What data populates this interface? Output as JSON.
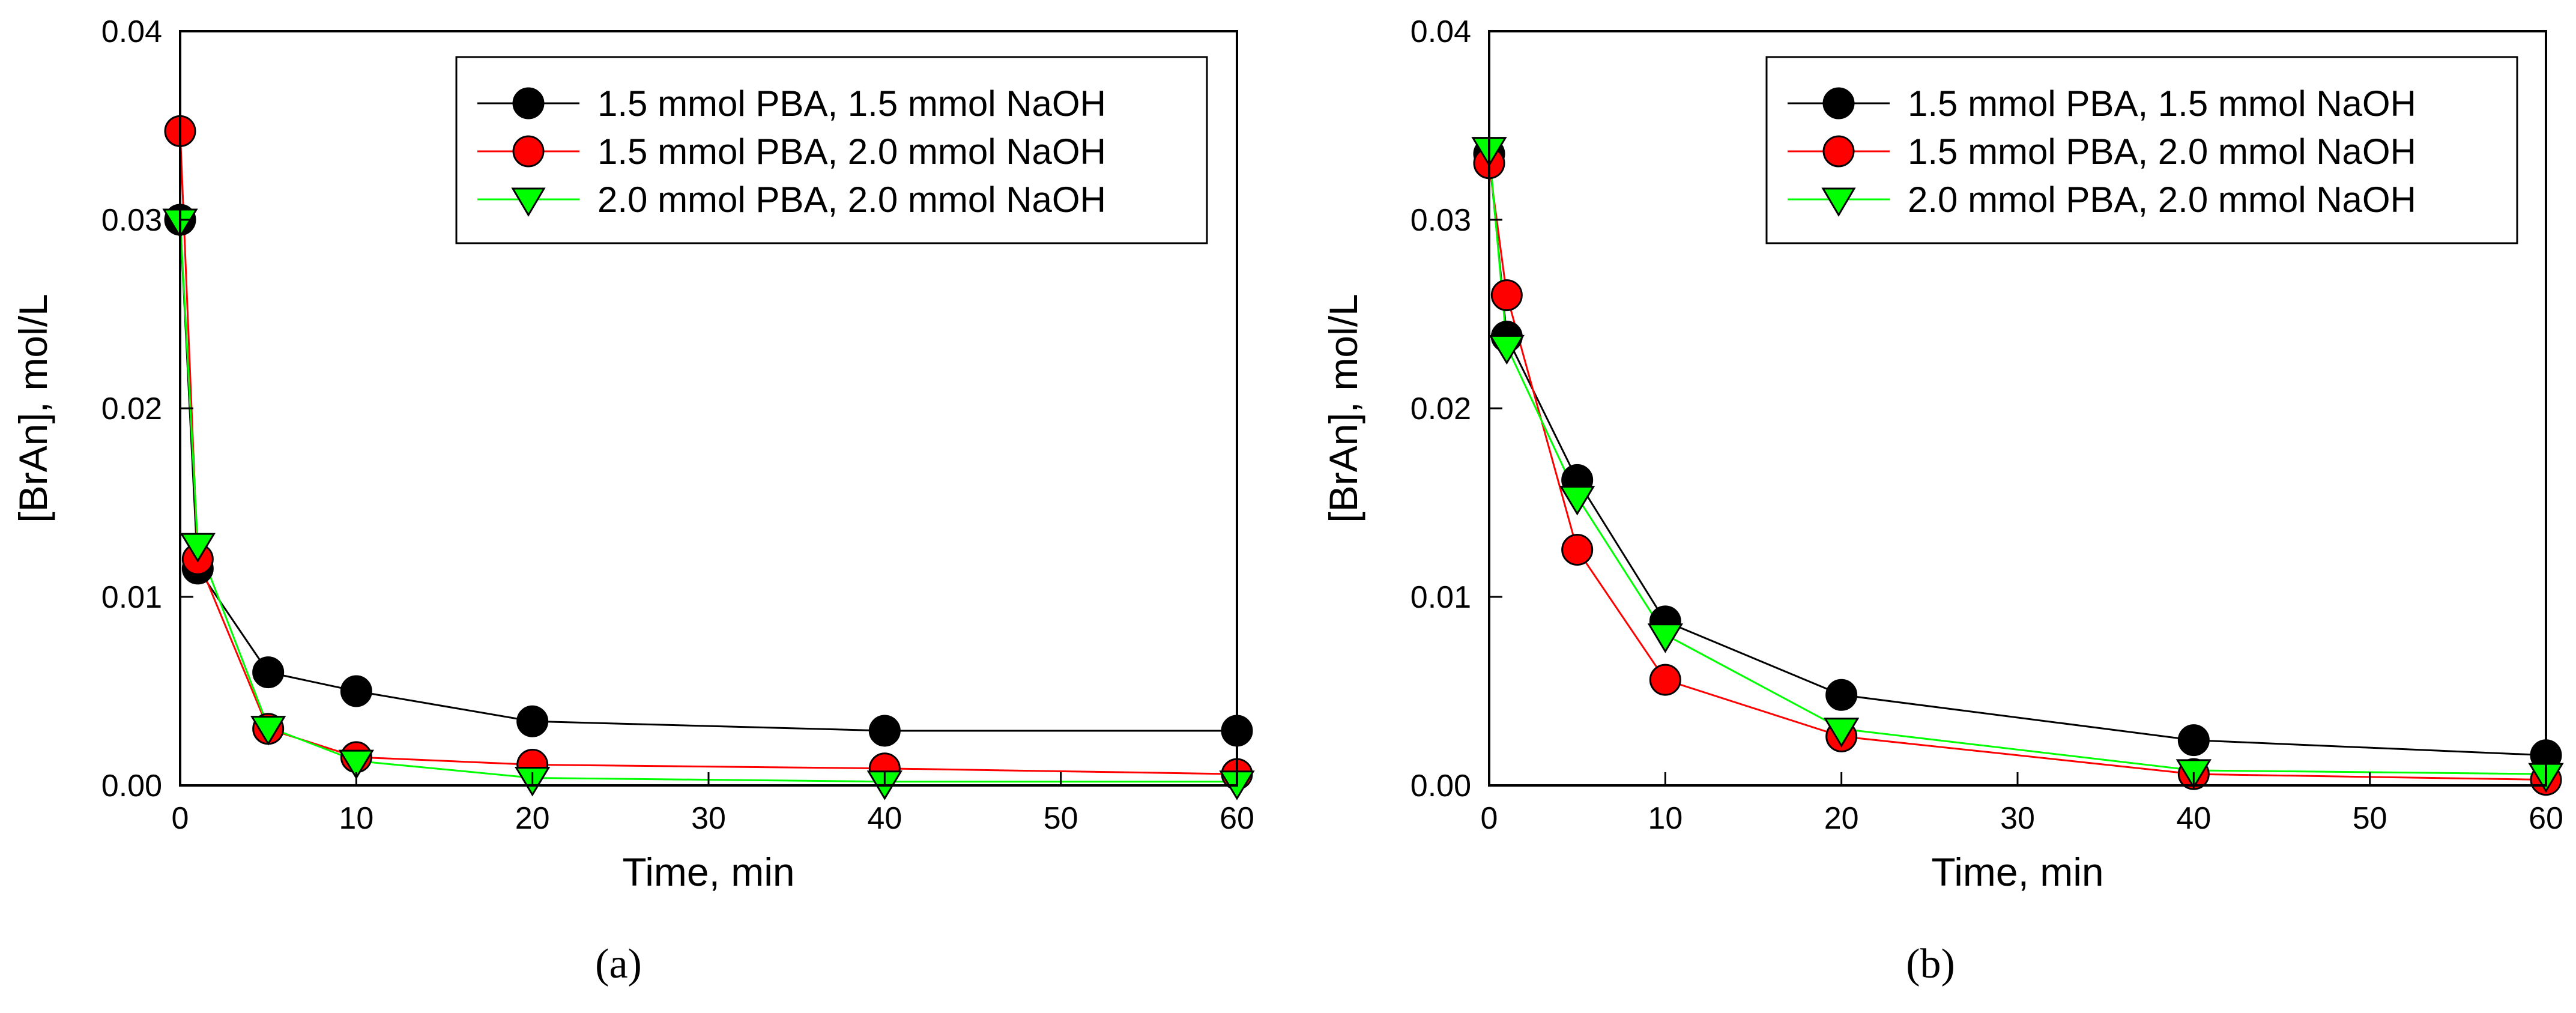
{
  "chart_data": [
    {
      "type": "line",
      "panel_label": "(a)",
      "xlabel": "Time, min",
      "ylabel": "[BrAn], mol/L",
      "xlim": [
        0,
        60
      ],
      "ylim": [
        0,
        0.04
      ],
      "xticks": [
        0,
        10,
        20,
        30,
        40,
        50,
        60
      ],
      "xtick_labels": [
        "0",
        "10",
        "20",
        "30",
        "40",
        "50",
        "60"
      ],
      "yticks": [
        0,
        0.01,
        0.02,
        0.03,
        0.04
      ],
      "ytick_labels": [
        "0.00",
        "0.01",
        "0.02",
        "0.03",
        "0.04"
      ],
      "legend_position": "top-right",
      "grid": false,
      "series": [
        {
          "name": "1.5 mmol PBA, 1.5 mmol NaOH",
          "color": "#000000",
          "marker": "circle",
          "x": [
            0,
            1,
            5,
            10,
            20,
            40,
            60
          ],
          "y": [
            0.03,
            0.0115,
            0.006,
            0.005,
            0.0034,
            0.0029,
            0.0029
          ]
        },
        {
          "name": "1.5 mmol PBA, 2.0 mmol NaOH",
          "color": "#ff0000",
          "marker": "circle",
          "x": [
            0,
            1,
            5,
            10,
            20,
            40,
            60
          ],
          "y": [
            0.0347,
            0.012,
            0.003,
            0.0015,
            0.0011,
            0.0009,
            0.0006
          ]
        },
        {
          "name": "2.0 mmol PBA, 2.0 mmol NaOH",
          "color": "#00ff00",
          "marker": "triangle-down",
          "x": [
            0,
            1,
            5,
            10,
            20,
            40,
            60
          ],
          "y": [
            0.03,
            0.0128,
            0.0031,
            0.0013,
            0.0004,
            0.0002,
            0.0002
          ]
        }
      ]
    },
    {
      "type": "line",
      "panel_label": "(b)",
      "xlabel": "Time, min",
      "ylabel": "[BrAn], mol/L",
      "xlim": [
        0,
        60
      ],
      "ylim": [
        0,
        0.04
      ],
      "xticks": [
        0,
        10,
        20,
        30,
        40,
        50,
        60
      ],
      "xtick_labels": [
        "0",
        "10",
        "20",
        "30",
        "40",
        "50",
        "60"
      ],
      "yticks": [
        0,
        0.01,
        0.02,
        0.03,
        0.04
      ],
      "ytick_labels": [
        "0.00",
        "0.01",
        "0.02",
        "0.03",
        "0.04"
      ],
      "legend_position": "top-right",
      "grid": false,
      "series": [
        {
          "name": "1.5 mmol PBA, 1.5 mmol NaOH",
          "color": "#000000",
          "marker": "circle",
          "x": [
            0,
            1,
            5,
            10,
            20,
            40,
            60
          ],
          "y": [
            0.0335,
            0.0238,
            0.0162,
            0.0087,
            0.0048,
            0.0024,
            0.0016
          ]
        },
        {
          "name": "1.5 mmol PBA, 2.0 mmol NaOH",
          "color": "#ff0000",
          "marker": "circle",
          "x": [
            0,
            1,
            5,
            10,
            20,
            40,
            60
          ],
          "y": [
            0.033,
            0.026,
            0.0125,
            0.0056,
            0.0026,
            0.0006,
            0.0003
          ]
        },
        {
          "name": "2.0 mmol PBA, 2.0 mmol NaOH",
          "color": "#00ff00",
          "marker": "triangle-down",
          "x": [
            0,
            1,
            5,
            10,
            20,
            40,
            60
          ],
          "y": [
            0.0338,
            0.0233,
            0.0153,
            0.008,
            0.003,
            0.0008,
            0.0006
          ]
        }
      ]
    }
  ]
}
